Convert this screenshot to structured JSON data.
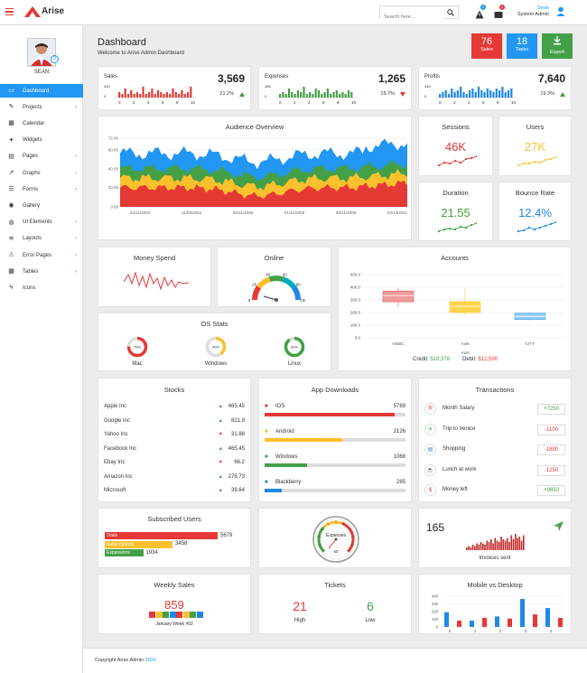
{
  "header": {
    "brand": "Arise",
    "search_placeholder": "Search here ...",
    "notif_count": "0",
    "message_count": "0",
    "user_name": "Sean",
    "user_role": "System Admin"
  },
  "profile": {
    "name": "SEAN",
    "avatar_badge": "0"
  },
  "sidebar": {
    "items": [
      {
        "label": "Dashboard",
        "icon": "monitor-icon",
        "chevron": false
      },
      {
        "label": "Projects",
        "icon": "edit-icon",
        "chevron": true
      },
      {
        "label": "Calendar",
        "icon": "calendar-icon",
        "chevron": false
      },
      {
        "label": "Widgets",
        "icon": "apps-icon",
        "chevron": false
      },
      {
        "label": "Pages",
        "icon": "file-icon",
        "chevron": true
      },
      {
        "label": "Graphs",
        "icon": "graph-icon",
        "chevron": true
      },
      {
        "label": "Forms",
        "icon": "form-icon",
        "chevron": true
      },
      {
        "label": "Gallery",
        "icon": "camera-icon",
        "chevron": false
      },
      {
        "label": "UI Elements",
        "icon": "palette-icon",
        "chevron": true
      },
      {
        "label": "Layouts",
        "icon": "layers-icon",
        "chevron": true
      },
      {
        "label": "Error Pages",
        "icon": "warning-icon",
        "chevron": true
      },
      {
        "label": "Tables",
        "icon": "table-icon",
        "chevron": true
      },
      {
        "label": "Icons",
        "icon": "bolt-icon",
        "chevron": false
      }
    ]
  },
  "page": {
    "title": "Dashboard",
    "subtitle": "Welcome to Arise Admin Dashboard"
  },
  "quick": {
    "sales_count": "76",
    "sales_label": "Sales",
    "tasks_count": "18",
    "tasks_label": "Tasks",
    "export_label": "Export"
  },
  "stats": {
    "sales": {
      "label": "Sales",
      "value": "3,569",
      "ytop": "440",
      "y0": "0",
      "pct": "21.2%",
      "xticks": [
        "0",
        "2",
        "4",
        "6",
        "8",
        "10"
      ],
      "bars": [
        3,
        2,
        5,
        2,
        4,
        2,
        3,
        2,
        6,
        2,
        3,
        5,
        2,
        4,
        3,
        2,
        3,
        2,
        5,
        3,
        2,
        4,
        2,
        3,
        6
      ]
    },
    "expenses": {
      "label": "Expenses",
      "value": "1,265",
      "ytop": "385",
      "y0": "0",
      "pct": "15.7%",
      "xticks": [
        "0",
        "2",
        "4",
        "6",
        "8",
        "10"
      ],
      "bars": [
        2,
        3,
        2,
        5,
        3,
        2,
        4,
        3,
        6,
        2,
        3,
        2,
        5,
        4,
        2,
        3,
        5,
        2,
        3,
        4,
        2,
        3,
        2,
        4,
        3
      ]
    },
    "profits": {
      "label": "Profits",
      "value": "7,640",
      "ytop": "440",
      "y0": "0",
      "pct": "19.3%",
      "xticks": [
        "0",
        "2",
        "4",
        "6",
        "8",
        "10"
      ],
      "bars": [
        2,
        3,
        4,
        2,
        5,
        3,
        4,
        6,
        3,
        2,
        4,
        5,
        3,
        6,
        4,
        3,
        5,
        4,
        3,
        5,
        4,
        6,
        3,
        4,
        5
      ]
    }
  },
  "audience": {
    "title": "Audience Overview",
    "yticks": [
      "72.40",
      "60.00",
      "40.00",
      "20.00",
      "0.00"
    ],
    "xticks": [
      "04/11/2003",
      "11/09/2004",
      "06/11/2006",
      "01/11/2008",
      "08/11/2009",
      "03/13/2011"
    ]
  },
  "sessions": {
    "title": "Sessions",
    "value": "46K"
  },
  "users": {
    "title": "Users",
    "value": "27K"
  },
  "duration": {
    "title": "Duration",
    "value": "21.55"
  },
  "bounce": {
    "title": "Bounce Rate",
    "value": "12.4%"
  },
  "money": {
    "title": "Money Spend"
  },
  "online": {
    "title": "Online",
    "ticks": [
      "0",
      "20",
      "40",
      "60",
      "80",
      "100"
    ]
  },
  "accounts": {
    "title": "Accounts",
    "yticks": [
      "500.0",
      "400.0",
      "300.0",
      "200.0",
      "100.0",
      "0.0"
    ],
    "categories": [
      "HSBC",
      "Axis",
      "CITY"
    ],
    "xlabel_axis": "Axis",
    "credit_label": "Credit:",
    "credit_value": "$18,378",
    "debit_label": "Debit:",
    "debit_value": "$12,590"
  },
  "os": {
    "title": "OS Stats",
    "items": [
      {
        "name": "Mac",
        "pct": "75%",
        "color": "#e53935",
        "value": 0.75
      },
      {
        "name": "Windows",
        "pct": "40%",
        "color": "#fbc02d",
        "value": 0.4
      },
      {
        "name": "Linux",
        "pct": "90%",
        "color": "#43a047",
        "value": 0.9
      }
    ]
  },
  "stocks": {
    "title": "Stocks",
    "items": [
      {
        "name": "Apple Inc",
        "value": "465.45",
        "up": true
      },
      {
        "name": "Google Inc",
        "value": "821.9",
        "up": true
      },
      {
        "name": "Yahoo Inc",
        "value": "31.88",
        "up": false
      },
      {
        "name": "Facebook Inc",
        "value": "465.45",
        "up": true
      },
      {
        "name": "Ebay Inc",
        "value": "66.2",
        "up": false
      },
      {
        "name": "Amazon Inc",
        "value": "278.73",
        "up": true
      },
      {
        "name": "Microsoft",
        "value": "39.64",
        "up": true
      }
    ]
  },
  "downloads": {
    "title": "App Downloads",
    "items": [
      {
        "name": "IOS",
        "count": "5769",
        "color": "#e53935",
        "value": 0.92,
        "icon": "apple-icon"
      },
      {
        "name": "Android",
        "count": "2126",
        "color": "#fbc02d",
        "value": 0.55,
        "icon": "android-icon"
      },
      {
        "name": "Windows",
        "count": "1068",
        "color": "#43a047",
        "value": 0.3,
        "icon": "windows-icon"
      },
      {
        "name": "Blackberry",
        "count": "285",
        "color": "#1e88e5",
        "value": 0.12,
        "icon": "blackberry-icon"
      }
    ]
  },
  "transactions": {
    "title": "Transactions",
    "items": [
      {
        "name": "Month Salary",
        "amount": "+7250",
        "positive": true,
        "icon": "shield-icon"
      },
      {
        "name": "Trip to Venice",
        "amount": "-1100",
        "positive": false,
        "icon": "plane-icon"
      },
      {
        "name": "Shopping",
        "amount": "-1890",
        "positive": false,
        "icon": "cart-icon"
      },
      {
        "name": "Lunch at work",
        "amount": "-1250",
        "positive": false,
        "icon": "coffee-icon"
      },
      {
        "name": "Money left",
        "amount": "+9650",
        "positive": true,
        "icon": "wallet-icon"
      }
    ]
  },
  "subscribed": {
    "title": "Subscribed Users",
    "items": [
      {
        "name": "Trials",
        "count": "5679",
        "color": "#e53935",
        "value": 1.0
      },
      {
        "name": "Subscriptions",
        "count": "3458",
        "color": "#fbc02d",
        "value": 0.6
      },
      {
        "name": "Expansions",
        "count": "1934",
        "color": "#43a047",
        "value": 0.34
      }
    ]
  },
  "gauge": {
    "label": "Expenses",
    "value": "60"
  },
  "invoices": {
    "value": "165",
    "label": "Invoices sent",
    "bars": [
      2,
      3,
      2,
      4,
      3,
      5,
      4,
      6,
      5,
      4,
      7,
      6,
      8,
      5,
      9,
      7,
      6,
      10,
      8,
      7,
      9,
      6,
      11,
      8,
      12,
      9,
      10,
      7,
      11
    ]
  },
  "weekly": {
    "title": "Weekly Sales",
    "value": "859",
    "week": "January Week #02",
    "colors": [
      "#e53935",
      "#fbc02d",
      "#43a047",
      "#1e88e5",
      "#e53935",
      "#fbc02d",
      "#43a047",
      "#1e88e5"
    ]
  },
  "tickets": {
    "title": "Tickets",
    "high": "21",
    "high_label": "High",
    "low": "6",
    "low_label": "Low"
  },
  "mobile": {
    "title": "Mobile vs Desktop",
    "yticks": [
      "440",
      "330",
      "220",
      "110",
      "0"
    ],
    "xticks": [
      "0",
      "1",
      "2",
      "3",
      "4"
    ],
    "blue": [
      210,
      90,
      150,
      400,
      270
    ],
    "red": [
      90,
      130,
      120,
      180,
      130
    ]
  },
  "footer": {
    "text": "Copyright Arise Admin",
    "year": "2016"
  }
}
